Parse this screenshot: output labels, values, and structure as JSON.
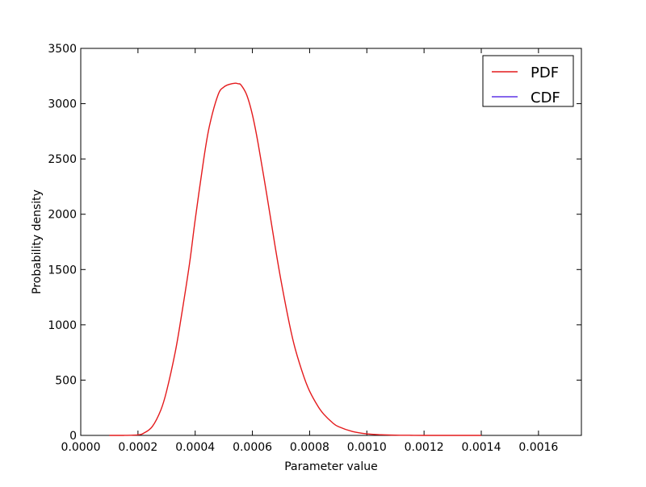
{
  "chart_data": {
    "type": "line",
    "title": "",
    "xlabel": "Parameter value",
    "ylabel": "Probability density",
    "xlim": [
      0.0,
      0.00175
    ],
    "ylim": [
      0,
      3500
    ],
    "x_ticks": [
      0.0,
      0.0002,
      0.0004,
      0.0006,
      0.0008,
      0.001,
      0.0012,
      0.0014,
      0.0016
    ],
    "x_tick_labels": [
      "0.0000",
      "0.0002",
      "0.0004",
      "0.0006",
      "0.0008",
      "0.0010",
      "0.0012",
      "0.0014",
      "0.0016"
    ],
    "y_ticks": [
      0,
      500,
      1000,
      1500,
      2000,
      2500,
      3000,
      3500
    ],
    "y_tick_labels": [
      "0",
      "500",
      "1000",
      "1500",
      "2000",
      "2500",
      "3000",
      "3500"
    ],
    "grid": false,
    "legend": {
      "position": "top-right"
    },
    "series": [
      {
        "name": "PDF",
        "color": "#e41a1c",
        "x": [
          0.0001,
          0.00015,
          0.0002,
          0.00022,
          0.00025,
          0.00028,
          0.0003,
          0.00033,
          0.00035,
          0.00038,
          0.0004,
          0.00043,
          0.00045,
          0.00048,
          0.0005,
          0.00052,
          0.00054,
          0.00055,
          0.00056,
          0.00058,
          0.0006,
          0.00062,
          0.00065,
          0.00068,
          0.0007,
          0.00073,
          0.00075,
          0.00078,
          0.0008,
          0.00083,
          0.00085,
          0.00088,
          0.0009,
          0.00095,
          0.001,
          0.00105,
          0.0011,
          0.00115,
          0.0012,
          0.0013,
          0.0014
        ],
        "y": [
          0,
          0,
          5,
          20,
          80,
          230,
          400,
          750,
          1050,
          1550,
          1950,
          2500,
          2800,
          3080,
          3150,
          3175,
          3185,
          3180,
          3170,
          3080,
          2900,
          2640,
          2180,
          1700,
          1400,
          1000,
          780,
          530,
          400,
          260,
          190,
          115,
          80,
          35,
          14,
          6,
          2,
          1,
          0,
          0,
          0
        ]
      },
      {
        "name": "CDF",
        "color": "#5e35e6",
        "x": [],
        "y": []
      }
    ]
  }
}
